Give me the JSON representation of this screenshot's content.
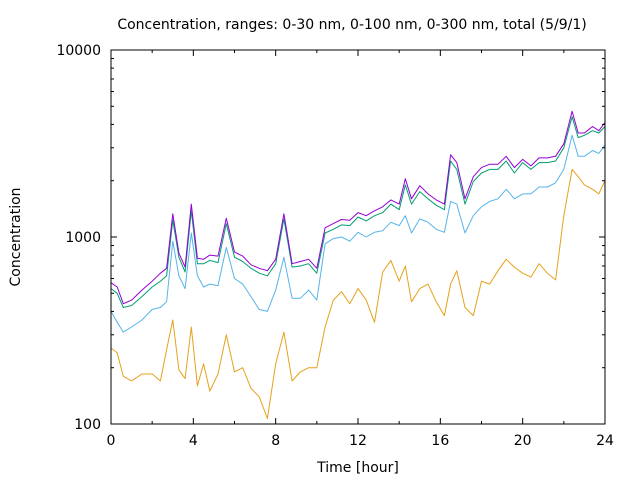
{
  "chart_data": {
    "type": "line",
    "title": "Concentration, ranges: 0-30 nm, 0-100 nm, 0-300 nm, total (5/9/1)",
    "xlabel": "Time [hour]",
    "ylabel": "Concentration",
    "xlim": [
      0,
      24
    ],
    "ylim": [
      100,
      10000
    ],
    "yscale": "log",
    "grid": false,
    "legend": "none",
    "xticks": [
      0,
      4,
      8,
      12,
      16,
      20,
      24
    ],
    "xtick_labels": [
      "0",
      "4",
      "8",
      "12",
      "16",
      "20",
      "24"
    ],
    "yticks": [
      100,
      1000,
      10000
    ],
    "ytick_labels": [
      "100",
      "1000",
      "10000"
    ],
    "series": [
      {
        "color": "#e5a11c",
        "x": [
          0,
          0.3,
          0.6,
          1,
          1.5,
          2,
          2.4,
          2.7,
          3,
          3.3,
          3.6,
          3.9,
          4.2,
          4.5,
          4.8,
          5.2,
          5.6,
          6,
          6.4,
          6.8,
          7.2,
          7.6,
          8,
          8.4,
          8.8,
          9.2,
          9.6,
          10,
          10.4,
          10.8,
          11.2,
          11.6,
          12,
          12.4,
          12.8,
          13.2,
          13.6,
          14,
          14.3,
          14.6,
          15,
          15.4,
          15.8,
          16.2,
          16.5,
          16.8,
          17.2,
          17.6,
          18,
          18.4,
          18.8,
          19.2,
          19.6,
          20,
          20.4,
          20.8,
          21.2,
          21.6,
          22,
          22.4,
          22.7,
          23,
          23.4,
          23.7,
          24
        ],
        "values": [
          255,
          240,
          180,
          170,
          185,
          185,
          170,
          250,
          360,
          195,
          175,
          330,
          160,
          210,
          150,
          185,
          300,
          190,
          200,
          155,
          140,
          107,
          210,
          310,
          170,
          190,
          200,
          200,
          330,
          460,
          510,
          440,
          530,
          460,
          350,
          650,
          750,
          580,
          700,
          450,
          530,
          560,
          450,
          380,
          560,
          660,
          420,
          380,
          580,
          560,
          660,
          760,
          690,
          640,
          610,
          720,
          640,
          590,
          1300,
          2300,
          2100,
          1900,
          1800,
          1700,
          2000
        ]
      },
      {
        "color": "#56b4e9",
        "x": [
          0,
          0.3,
          0.6,
          1,
          1.5,
          2,
          2.4,
          2.7,
          3,
          3.3,
          3.6,
          3.9,
          4.2,
          4.5,
          4.8,
          5.2,
          5.6,
          6,
          6.4,
          6.8,
          7.2,
          7.6,
          8,
          8.4,
          8.8,
          9.2,
          9.6,
          10,
          10.4,
          10.8,
          11.2,
          11.6,
          12,
          12.4,
          12.8,
          13.2,
          13.6,
          14,
          14.3,
          14.6,
          15,
          15.4,
          15.8,
          16.2,
          16.5,
          16.8,
          17.2,
          17.6,
          18,
          18.4,
          18.8,
          19.2,
          19.6,
          20,
          20.4,
          20.8,
          21.2,
          21.6,
          22,
          22.4,
          22.7,
          23,
          23.4,
          23.7,
          24
        ],
        "values": [
          400,
          350,
          310,
          330,
          360,
          410,
          420,
          450,
          950,
          620,
          530,
          1050,
          620,
          540,
          560,
          550,
          880,
          600,
          560,
          480,
          410,
          400,
          520,
          780,
          470,
          470,
          520,
          460,
          920,
          980,
          1000,
          950,
          1060,
          1000,
          1060,
          1080,
          1200,
          1150,
          1300,
          1050,
          1250,
          1200,
          1100,
          1060,
          1550,
          1500,
          1050,
          1300,
          1450,
          1550,
          1600,
          1800,
          1600,
          1700,
          1700,
          1850,
          1850,
          1950,
          2300,
          3500,
          2700,
          2700,
          2900,
          2800,
          3100
        ]
      },
      {
        "color": "#009e73",
        "x": [
          0,
          0.3,
          0.6,
          1,
          1.5,
          2,
          2.4,
          2.7,
          3,
          3.3,
          3.6,
          3.9,
          4.2,
          4.5,
          4.8,
          5.2,
          5.6,
          6,
          6.4,
          6.8,
          7.2,
          7.6,
          8,
          8.4,
          8.8,
          9.2,
          9.6,
          10,
          10.4,
          10.8,
          11.2,
          11.6,
          12,
          12.4,
          12.8,
          13.2,
          13.6,
          14,
          14.3,
          14.6,
          15,
          15.4,
          15.8,
          16.2,
          16.5,
          16.8,
          17.2,
          17.6,
          18,
          18.4,
          18.8,
          19.2,
          19.6,
          20,
          20.4,
          20.8,
          21.2,
          21.6,
          22,
          22.4,
          22.7,
          23,
          23.4,
          23.7,
          24
        ],
        "values": [
          530,
          500,
          420,
          430,
          480,
          540,
          580,
          620,
          1230,
          780,
          650,
          1380,
          720,
          720,
          750,
          730,
          1180,
          780,
          740,
          680,
          640,
          620,
          720,
          1250,
          690,
          700,
          720,
          640,
          1050,
          1100,
          1160,
          1150,
          1280,
          1220,
          1300,
          1350,
          1500,
          1400,
          1900,
          1500,
          1750,
          1600,
          1480,
          1400,
          2550,
          2300,
          1500,
          1980,
          2200,
          2300,
          2300,
          2550,
          2200,
          2500,
          2300,
          2500,
          2500,
          2550,
          3000,
          4400,
          3400,
          3500,
          3700,
          3600,
          3900
        ]
      },
      {
        "color": "#9400d3",
        "x": [
          0,
          0.3,
          0.6,
          1,
          1.5,
          2,
          2.4,
          2.7,
          3,
          3.3,
          3.6,
          3.9,
          4.2,
          4.5,
          4.8,
          5.2,
          5.6,
          6,
          6.4,
          6.8,
          7.2,
          7.6,
          8,
          8.4,
          8.8,
          9.2,
          9.6,
          10,
          10.4,
          10.8,
          11.2,
          11.6,
          12,
          12.4,
          12.8,
          13.2,
          13.6,
          14,
          14.3,
          14.6,
          15,
          15.4,
          15.8,
          16.2,
          16.5,
          16.8,
          17.2,
          17.6,
          18,
          18.4,
          18.8,
          19.2,
          19.6,
          20,
          20.4,
          20.8,
          21.2,
          21.6,
          22,
          22.4,
          22.7,
          23,
          23.4,
          23.7,
          24
        ],
        "values": [
          570,
          540,
          440,
          460,
          520,
          580,
          640,
          680,
          1330,
          820,
          690,
          1500,
          770,
          760,
          800,
          790,
          1260,
          830,
          790,
          710,
          680,
          660,
          760,
          1330,
          720,
          740,
          760,
          680,
          1120,
          1180,
          1240,
          1230,
          1350,
          1300,
          1380,
          1450,
          1580,
          1500,
          2050,
          1600,
          1880,
          1700,
          1580,
          1500,
          2750,
          2500,
          1600,
          2100,
          2350,
          2450,
          2450,
          2700,
          2350,
          2600,
          2400,
          2650,
          2650,
          2700,
          3150,
          4700,
          3600,
          3600,
          3900,
          3700,
          4100
        ]
      }
    ]
  }
}
